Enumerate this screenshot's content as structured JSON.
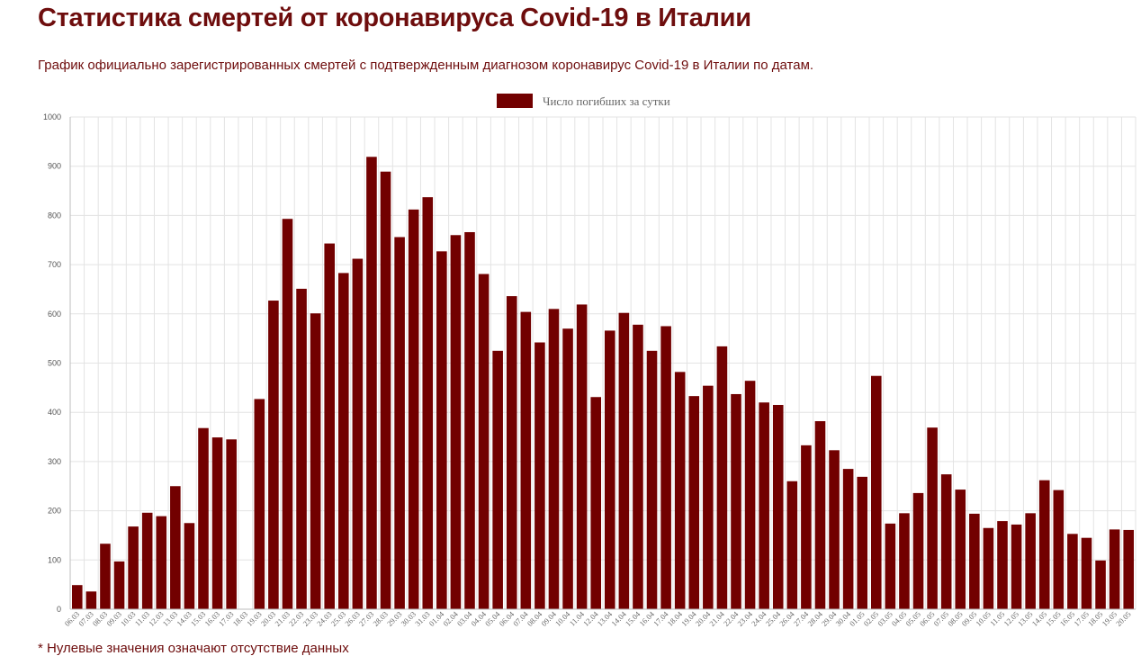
{
  "page": {
    "title": "Статистика смертей от коронавируса Covid-19 в Италии",
    "subtitle": "График официально зарегистрированных смертей с подтвержденным диагнозом коронавирус Covid-19 в Италии по датам.",
    "footnote": "* Нулевые значения означают отсутствие данных"
  },
  "colors": {
    "bar": "#720000",
    "text": "#6e0d0d",
    "grid": "#e3e3e3"
  },
  "chart_data": {
    "type": "bar",
    "legend": "Число погибших за сутки",
    "legend_position": "top-center",
    "grid": true,
    "ylim": [
      0,
      1000
    ],
    "yticks": [
      0,
      100,
      200,
      300,
      400,
      500,
      600,
      700,
      800,
      900,
      1000
    ],
    "categories": [
      "06.03",
      "07.03",
      "08.03",
      "09.03",
      "10.03",
      "11.03",
      "12.03",
      "13.03",
      "14.03",
      "15.03",
      "16.03",
      "17.03",
      "18.03",
      "19.03",
      "20.03",
      "21.03",
      "22.03",
      "23.03",
      "24.03",
      "25.03",
      "26.03",
      "27.03",
      "28.03",
      "29.03",
      "30.03",
      "31.03",
      "01.04",
      "02.04",
      "03.04",
      "04.04",
      "05.04",
      "06.04",
      "07.04",
      "08.04",
      "09.04",
      "10.04",
      "11.04",
      "12.04",
      "13.04",
      "14.04",
      "15.04",
      "16.04",
      "17.04",
      "18.04",
      "19.04",
      "20.04",
      "21.04",
      "22.04",
      "23.04",
      "24.04",
      "25.04",
      "26.04",
      "27.04",
      "28.04",
      "29.04",
      "30.04",
      "01.05",
      "02.05",
      "03.05",
      "04.05",
      "05.05",
      "06.05",
      "07.05",
      "08.05",
      "09.05",
      "10.05",
      "11.05",
      "12.05",
      "13.05",
      "14.05",
      "15.05",
      "16.05",
      "17.05",
      "18.05",
      "19.05",
      "20.05"
    ],
    "series": [
      {
        "name": "Число погибших за сутки",
        "values": [
          49,
          36,
          133,
          97,
          168,
          196,
          189,
          250,
          175,
          368,
          349,
          345,
          0,
          427,
          627,
          793,
          651,
          601,
          743,
          683,
          712,
          919,
          889,
          756,
          812,
          837,
          727,
          760,
          766,
          681,
          525,
          636,
          604,
          542,
          610,
          570,
          619,
          431,
          566,
          602,
          578,
          525,
          575,
          482,
          433,
          454,
          534,
          437,
          464,
          420,
          415,
          260,
          333,
          382,
          323,
          285,
          269,
          474,
          174,
          195,
          236,
          369,
          274,
          243,
          194,
          165,
          179,
          172,
          195,
          262,
          242,
          153,
          145,
          99,
          162,
          161
        ]
      }
    ]
  }
}
